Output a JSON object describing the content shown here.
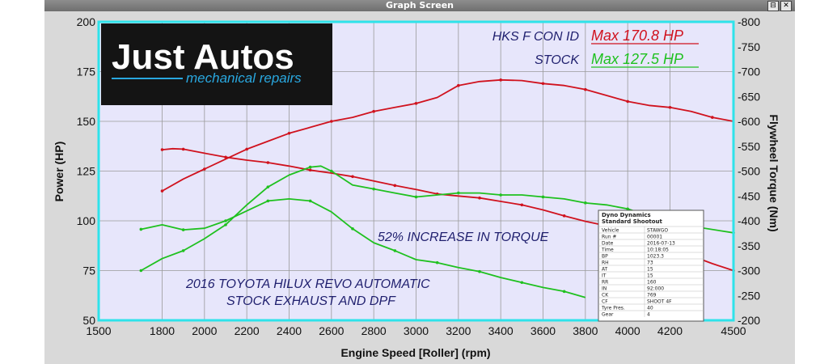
{
  "window": {
    "title": "Graph Screen",
    "buttons": [
      "⊟",
      "✕"
    ]
  },
  "logo": {
    "name": "Just Autos",
    "tagline": "mechanical repairs"
  },
  "legend": {
    "entries": [
      {
        "label": "HKS F CON ID",
        "max_label": "Max 170.8 HP",
        "color": "#d0121e"
      },
      {
        "label": "STOCK",
        "max_label": "Max 127.5 HP",
        "color": "#1fc11f"
      }
    ]
  },
  "annotations": {
    "increase": "52% INCREASE IN TORQUE",
    "vehicle_line1": "2016 TOYOTA HILUX REVO AUTOMATIC",
    "vehicle_line2": "STOCK EXHAUST AND DPF"
  },
  "info_table": {
    "title_line1": "Dyno Dynamics",
    "title_line2": "Standard Shootout",
    "rows": [
      [
        "Vehicle",
        "STAWGO"
      ],
      [
        "Run #",
        "00001"
      ],
      [
        "Date",
        "2016-07-13"
      ],
      [
        "Time",
        "10:18:05"
      ],
      [
        "BP",
        "1023.3"
      ],
      [
        "RH",
        "73"
      ],
      [
        "AT",
        "15"
      ],
      [
        "IT",
        "15"
      ],
      [
        "RR",
        "160"
      ],
      [
        "IN",
        "92:000"
      ],
      [
        "CK",
        "769"
      ],
      [
        "CF",
        "SHOOT 4F"
      ],
      [
        "Tyre Pres.",
        "40"
      ],
      [
        "Gear",
        "4"
      ]
    ]
  },
  "colors": {
    "plot_bg": "#e7e6fb",
    "plot_border": "#2ee3ea",
    "grid": "#9a9a9a",
    "modified": "#d0121e",
    "stock": "#1fc11f"
  },
  "chart_data": {
    "type": "line",
    "xlabel": "Engine Speed [Roller] (rpm)",
    "ylabel": "Power (HP)",
    "y2label": "Flywheel Torque (Nm)",
    "xlim": [
      1500,
      4500
    ],
    "ylim": [
      50,
      200
    ],
    "y2lim": [
      200,
      800
    ],
    "x_ticks": [
      1500,
      1800,
      2000,
      2200,
      2400,
      2600,
      2800,
      3000,
      3200,
      3400,
      3600,
      3800,
      4000,
      4200,
      4500
    ],
    "y_ticks": [
      50,
      75,
      100,
      125,
      150,
      175,
      200
    ],
    "y2_ticks": [
      200,
      250,
      300,
      350,
      400,
      450,
      500,
      550,
      600,
      650,
      700,
      750,
      800
    ],
    "grid": true,
    "series": [
      {
        "name": "HKS F CON ID",
        "kind": "power",
        "axis": "left",
        "color": "#d0121e",
        "x": [
          1800,
          1900,
          2000,
          2100,
          2200,
          2300,
          2400,
          2500,
          2600,
          2700,
          2800,
          2900,
          3000,
          3100,
          3200,
          3300,
          3400,
          3500,
          3600,
          3700,
          3800,
          3900,
          4000,
          4100,
          4200,
          4300,
          4400,
          4500
        ],
        "y": [
          115,
          121,
          126,
          131,
          136,
          140,
          144,
          147,
          150,
          152,
          155,
          157,
          159,
          162,
          168,
          170,
          170.8,
          170.5,
          169,
          168,
          166,
          163,
          160,
          158,
          157,
          155,
          152,
          150
        ]
      },
      {
        "name": "HKS F CON ID",
        "kind": "torque",
        "axis": "right",
        "color": "#d0121e",
        "x": [
          1800,
          1850,
          1900,
          2000,
          2100,
          2200,
          2300,
          2400,
          2500,
          2600,
          2700,
          2800,
          2900,
          3000,
          3100,
          3200,
          3300,
          3400,
          3500,
          3600,
          3700,
          3800,
          3900,
          4000,
          4100,
          4200,
          4300,
          4400,
          4500
        ],
        "y": [
          543,
          545,
          544,
          536,
          528,
          522,
          517,
          510,
          502,
          496,
          489,
          480,
          471,
          463,
          454,
          450,
          446,
          439,
          432,
          422,
          410,
          399,
          390,
          375,
          360,
          345,
          330,
          314,
          300
        ]
      },
      {
        "name": "STOCK",
        "kind": "power",
        "axis": "left",
        "color": "#1fc11f",
        "x": [
          1700,
          1800,
          1900,
          2000,
          2100,
          2200,
          2300,
          2400,
          2500,
          2550,
          2600,
          2700,
          2800,
          2900,
          3000,
          3100,
          3200,
          3300,
          3400,
          3500,
          3600,
          3700,
          3800,
          3900,
          4000,
          4200,
          4500
        ],
        "y": [
          75,
          81,
          85,
          91,
          98,
          108,
          117,
          123,
          127,
          127.5,
          125,
          118,
          116,
          114,
          112,
          113,
          114,
          114,
          113,
          113,
          112,
          111,
          109,
          108,
          106,
          99,
          94
        ]
      },
      {
        "name": "STOCK",
        "kind": "torque",
        "axis": "right",
        "color": "#1fc11f",
        "x": [
          1700,
          1800,
          1900,
          2000,
          2100,
          2200,
          2300,
          2400,
          2500,
          2600,
          2700,
          2800,
          2900,
          3000,
          3100,
          3200,
          3300,
          3400,
          3500,
          3600,
          3700,
          3800
        ],
        "y": [
          383,
          392,
          382,
          385,
          400,
          420,
          440,
          444,
          440,
          418,
          384,
          356,
          340,
          322,
          316,
          306,
          298,
          286,
          276,
          266,
          258,
          246
        ]
      }
    ]
  }
}
